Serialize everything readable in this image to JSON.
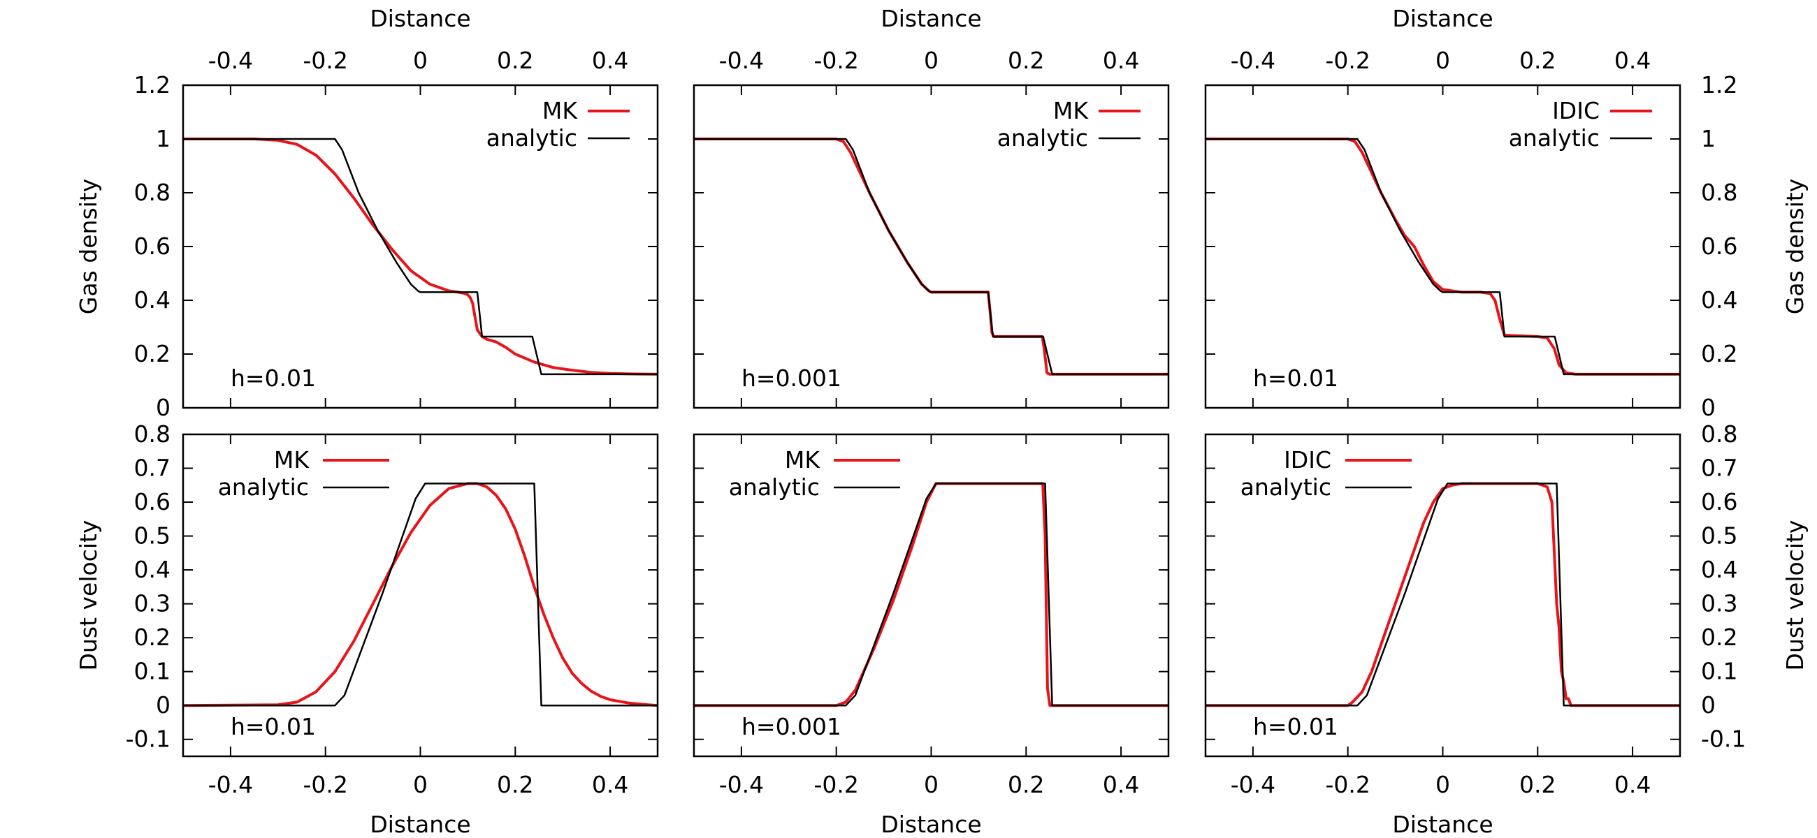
{
  "chart_data": [
    {
      "type": "line",
      "panel": "top-left",
      "xlabel": "Distance",
      "ylabel": "Gas density",
      "xlim": [
        -0.5,
        0.5
      ],
      "ylim": [
        0,
        1.2
      ],
      "xticks": [
        -0.4,
        -0.2,
        0,
        0.2,
        0.4
      ],
      "yticks": [
        0,
        0.2,
        0.4,
        0.6,
        0.8,
        1,
        1.2
      ],
      "annotation": "h=0.01",
      "legend": "top-right",
      "series": [
        {
          "name": "MK",
          "color": "#e8141a",
          "x": [
            -0.5,
            -0.35,
            -0.3,
            -0.26,
            -0.22,
            -0.18,
            -0.14,
            -0.1,
            -0.06,
            -0.02,
            0.02,
            0.06,
            0.08,
            0.095,
            0.1,
            0.105,
            0.11,
            0.115,
            0.12,
            0.13,
            0.14,
            0.16,
            0.18,
            0.2,
            0.24,
            0.28,
            0.32,
            0.36,
            0.4,
            0.45,
            0.5
          ],
          "y": [
            1.0,
            1.0,
            0.995,
            0.98,
            0.94,
            0.87,
            0.78,
            0.68,
            0.59,
            0.51,
            0.46,
            0.435,
            0.43,
            0.425,
            0.42,
            0.41,
            0.39,
            0.34,
            0.29,
            0.265,
            0.255,
            0.245,
            0.225,
            0.2,
            0.17,
            0.15,
            0.14,
            0.132,
            0.128,
            0.126,
            0.125
          ]
        },
        {
          "name": "analytic",
          "color": "#000000",
          "x": [
            -0.5,
            -0.18,
            -0.165,
            -0.13,
            -0.09,
            -0.05,
            -0.02,
            -0.005,
            0.0,
            0.12,
            0.13,
            0.236,
            0.255,
            0.5
          ],
          "y": [
            1.0,
            1.0,
            0.96,
            0.8,
            0.66,
            0.54,
            0.46,
            0.435,
            0.43,
            0.43,
            0.265,
            0.265,
            0.125,
            0.125
          ]
        }
      ]
    },
    {
      "type": "line",
      "panel": "top-middle",
      "xlabel": "Distance",
      "ylabel": "",
      "xlim": [
        -0.5,
        0.5
      ],
      "ylim": [
        0,
        1.2
      ],
      "xticks": [
        -0.4,
        -0.2,
        0,
        0.2,
        0.4
      ],
      "yticks": [
        0,
        0.2,
        0.4,
        0.6,
        0.8,
        1,
        1.2
      ],
      "annotation": "h=0.001",
      "legend": "top-right",
      "series": [
        {
          "name": "MK",
          "color": "#e8141a",
          "x": [
            -0.5,
            -0.2,
            -0.185,
            -0.17,
            -0.13,
            -0.09,
            -0.05,
            -0.02,
            -0.005,
            0.0,
            0.12,
            0.124,
            0.128,
            0.132,
            0.234,
            0.238,
            0.244,
            0.25,
            0.5
          ],
          "y": [
            1.0,
            1.0,
            0.99,
            0.95,
            0.8,
            0.66,
            0.54,
            0.46,
            0.435,
            0.43,
            0.43,
            0.36,
            0.28,
            0.265,
            0.265,
            0.22,
            0.13,
            0.125,
            0.125
          ]
        },
        {
          "name": "analytic",
          "color": "#000000",
          "x": [
            -0.5,
            -0.18,
            -0.165,
            -0.13,
            -0.09,
            -0.05,
            -0.02,
            -0.005,
            0.0,
            0.12,
            0.13,
            0.236,
            0.255,
            0.5
          ],
          "y": [
            1.0,
            1.0,
            0.96,
            0.8,
            0.66,
            0.54,
            0.46,
            0.435,
            0.43,
            0.43,
            0.265,
            0.265,
            0.125,
            0.125
          ]
        }
      ]
    },
    {
      "type": "line",
      "panel": "top-right",
      "xlabel": "Distance",
      "ylabel": "Gas density",
      "xlim": [
        -0.5,
        0.5
      ],
      "ylim": [
        0,
        1.2
      ],
      "xticks": [
        -0.4,
        -0.2,
        0,
        0.2,
        0.4
      ],
      "yticks": [
        0,
        0.2,
        0.4,
        0.6,
        0.8,
        1,
        1.2
      ],
      "annotation": "h=0.01",
      "legend": "top-right",
      "series": [
        {
          "name": "IDIC",
          "color": "#e8141a",
          "x": [
            -0.5,
            -0.2,
            -0.185,
            -0.17,
            -0.13,
            -0.1,
            -0.08,
            -0.06,
            -0.04,
            -0.02,
            0.0,
            0.04,
            0.08,
            0.1,
            0.11,
            0.12,
            0.13,
            0.2,
            0.22,
            0.235,
            0.245,
            0.26,
            0.28,
            0.5
          ],
          "y": [
            1.0,
            1.0,
            0.99,
            0.95,
            0.8,
            0.7,
            0.64,
            0.6,
            0.53,
            0.47,
            0.44,
            0.43,
            0.43,
            0.425,
            0.4,
            0.33,
            0.27,
            0.265,
            0.26,
            0.22,
            0.16,
            0.13,
            0.125,
            0.125
          ]
        },
        {
          "name": "analytic",
          "color": "#000000",
          "x": [
            -0.5,
            -0.18,
            -0.165,
            -0.13,
            -0.09,
            -0.05,
            -0.02,
            -0.005,
            0.0,
            0.12,
            0.13,
            0.236,
            0.255,
            0.5
          ],
          "y": [
            1.0,
            1.0,
            0.96,
            0.8,
            0.66,
            0.54,
            0.46,
            0.435,
            0.43,
            0.43,
            0.265,
            0.265,
            0.125,
            0.125
          ]
        }
      ]
    },
    {
      "type": "line",
      "panel": "bottom-left",
      "xlabel": "Distance",
      "ylabel": "Dust velocity",
      "xlim": [
        -0.5,
        0.5
      ],
      "ylim": [
        -0.15,
        0.8
      ],
      "xticks": [
        -0.4,
        -0.2,
        0,
        0.2,
        0.4
      ],
      "yticks": [
        -0.1,
        0,
        0.1,
        0.2,
        0.3,
        0.4,
        0.5,
        0.6,
        0.7,
        0.8
      ],
      "annotation": "h=0.01",
      "legend": "top-left",
      "series": [
        {
          "name": "MK",
          "color": "#e8141a",
          "x": [
            -0.5,
            -0.3,
            -0.26,
            -0.22,
            -0.18,
            -0.14,
            -0.1,
            -0.06,
            -0.02,
            0.02,
            0.06,
            0.1,
            0.12,
            0.14,
            0.16,
            0.18,
            0.2,
            0.22,
            0.24,
            0.26,
            0.28,
            0.3,
            0.32,
            0.34,
            0.36,
            0.38,
            0.4,
            0.44,
            0.48,
            0.5
          ],
          "y": [
            0.0,
            0.002,
            0.01,
            0.04,
            0.1,
            0.19,
            0.3,
            0.41,
            0.51,
            0.59,
            0.64,
            0.655,
            0.655,
            0.645,
            0.62,
            0.58,
            0.52,
            0.44,
            0.35,
            0.27,
            0.2,
            0.14,
            0.095,
            0.065,
            0.042,
            0.027,
            0.017,
            0.007,
            0.002,
            0.0
          ]
        },
        {
          "name": "analytic",
          "color": "#000000",
          "x": [
            -0.5,
            -0.18,
            -0.16,
            -0.08,
            -0.01,
            0.01,
            0.24,
            0.255,
            0.5
          ],
          "y": [
            0.0,
            0.0,
            0.03,
            0.33,
            0.61,
            0.655,
            0.655,
            0.0,
            0.0
          ]
        }
      ]
    },
    {
      "type": "line",
      "panel": "bottom-middle",
      "xlabel": "Distance",
      "ylabel": "",
      "xlim": [
        -0.5,
        0.5
      ],
      "ylim": [
        -0.15,
        0.8
      ],
      "xticks": [
        -0.4,
        -0.2,
        0,
        0.2,
        0.4
      ],
      "yticks": [
        -0.1,
        0,
        0.1,
        0.2,
        0.3,
        0.4,
        0.5,
        0.6,
        0.7,
        0.8
      ],
      "annotation": "h=0.001",
      "legend": "top-left",
      "series": [
        {
          "name": "MK",
          "color": "#e8141a",
          "x": [
            -0.5,
            -0.2,
            -0.18,
            -0.16,
            -0.12,
            -0.08,
            -0.04,
            -0.01,
            0.01,
            0.235,
            0.24,
            0.245,
            0.25,
            0.5
          ],
          "y": [
            0.0,
            0.0,
            0.01,
            0.045,
            0.17,
            0.31,
            0.47,
            0.6,
            0.655,
            0.655,
            0.5,
            0.05,
            0.0,
            0.0
          ]
        },
        {
          "name": "analytic",
          "color": "#000000",
          "x": [
            -0.5,
            -0.18,
            -0.16,
            -0.08,
            -0.01,
            0.01,
            0.24,
            0.255,
            0.5
          ],
          "y": [
            0.0,
            0.0,
            0.03,
            0.33,
            0.61,
            0.655,
            0.655,
            0.0,
            0.0
          ]
        }
      ]
    },
    {
      "type": "line",
      "panel": "bottom-right",
      "xlabel": "Distance",
      "ylabel": "Dust velocity",
      "xlim": [
        -0.5,
        0.5
      ],
      "ylim": [
        -0.15,
        0.8
      ],
      "xticks": [
        -0.4,
        -0.2,
        0,
        0.2,
        0.4
      ],
      "yticks": [
        -0.1,
        0,
        0.1,
        0.2,
        0.3,
        0.4,
        0.5,
        0.6,
        0.7,
        0.8
      ],
      "annotation": "h=0.01",
      "legend": "top-left",
      "series": [
        {
          "name": "IDIC",
          "color": "#e8141a",
          "x": [
            -0.5,
            -0.2,
            -0.19,
            -0.18,
            -0.17,
            -0.16,
            -0.15,
            -0.14,
            -0.13,
            -0.12,
            -0.11,
            -0.1,
            -0.09,
            -0.08,
            -0.07,
            -0.06,
            -0.05,
            -0.04,
            -0.03,
            -0.02,
            -0.01,
            0.0,
            0.02,
            0.04,
            0.2,
            0.22,
            0.23,
            0.235,
            0.24,
            0.245,
            0.25,
            0.255,
            0.26,
            0.265,
            0.27,
            0.28,
            0.5
          ],
          "y": [
            0.0,
            0.0,
            0.01,
            0.025,
            0.04,
            0.07,
            0.1,
            0.14,
            0.18,
            0.22,
            0.26,
            0.3,
            0.34,
            0.38,
            0.42,
            0.46,
            0.5,
            0.54,
            0.57,
            0.6,
            0.62,
            0.64,
            0.65,
            0.655,
            0.655,
            0.645,
            0.6,
            0.45,
            0.3,
            0.23,
            0.1,
            0.07,
            0.02,
            0.02,
            0.0,
            0.0,
            0.0
          ]
        },
        {
          "name": "analytic",
          "color": "#000000",
          "x": [
            -0.5,
            -0.18,
            -0.16,
            -0.08,
            -0.01,
            0.01,
            0.24,
            0.255,
            0.5
          ],
          "y": [
            0.0,
            0.0,
            0.03,
            0.33,
            0.61,
            0.655,
            0.655,
            0.0,
            0.0
          ]
        }
      ]
    }
  ]
}
